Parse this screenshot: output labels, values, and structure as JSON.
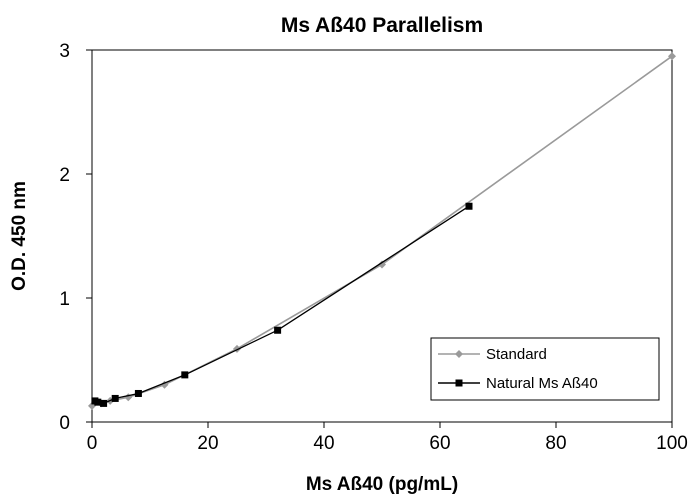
{
  "chart_data": {
    "type": "line",
    "title": "Ms Aß40 Parallelism",
    "xlabel": "Ms Aß40 (pg/mL)",
    "ylabel": "O.D. 450 nm",
    "xlim": [
      0,
      100
    ],
    "ylim": [
      0,
      3
    ],
    "xticks": [
      "0",
      "20",
      "40",
      "60",
      "80",
      "100"
    ],
    "yticks": [
      "0",
      "1",
      "2",
      "3"
    ],
    "grid": false,
    "legend_position": "bottom-right",
    "series": [
      {
        "name": "Standard",
        "color": "#9a9a9a",
        "marker": "diamond",
        "x": [
          0,
          1.56,
          3.13,
          6.25,
          12.5,
          25,
          50,
          100
        ],
        "y": [
          0.13,
          0.15,
          0.17,
          0.2,
          0.3,
          0.59,
          1.27,
          2.95
        ]
      },
      {
        "name": "Natural Ms Aß40",
        "color": "#000000",
        "marker": "square",
        "x": [
          0.5,
          1.0,
          2.0,
          4.0,
          8.0,
          16.0,
          32.0,
          65.0
        ],
        "y": [
          0.17,
          0.16,
          0.15,
          0.19,
          0.23,
          0.38,
          0.74,
          1.74
        ]
      }
    ]
  }
}
